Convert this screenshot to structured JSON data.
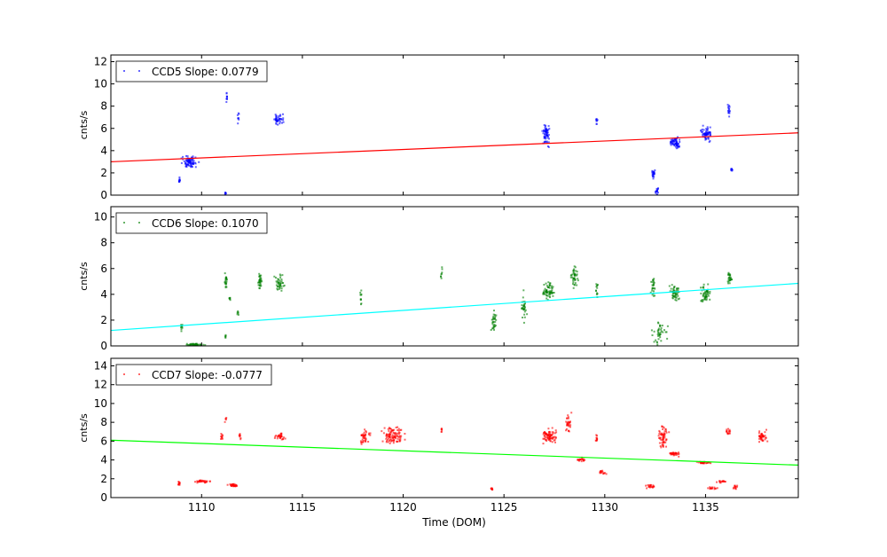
{
  "chart_data": {
    "type": "scatter",
    "xlabel": "Time (DOM)",
    "xlim": [
      1105.5,
      1139.6
    ],
    "xticks": [
      1110,
      1115,
      1120,
      1125,
      1130,
      1135
    ],
    "cluster_format": [
      "x",
      "y",
      "x_spread",
      "y_spread",
      "count"
    ],
    "panels": [
      {
        "name": "CCD5",
        "legend": "CCD5 Slope: 0.0779",
        "legend_position": "upper-left",
        "ylabel": "cnts/s",
        "ylim": [
          0,
          12.6
        ],
        "yticks": [
          0,
          2,
          4,
          6,
          8,
          10,
          12
        ],
        "point_color": "#0000ff",
        "fit_color": "#ff0000",
        "fit_line": [
          [
            1105.5,
            3.0
          ],
          [
            1139.6,
            5.6
          ]
        ],
        "clusters": [
          [
            1108.9,
            1.3,
            0.04,
            0.3,
            10
          ],
          [
            1109.4,
            3.0,
            0.3,
            0.4,
            80
          ],
          [
            1111.2,
            0.1,
            0.03,
            0.1,
            8
          ],
          [
            1111.25,
            8.6,
            0.03,
            0.5,
            10
          ],
          [
            1111.8,
            7.0,
            0.04,
            0.4,
            8
          ],
          [
            1113.8,
            6.9,
            0.2,
            0.35,
            40
          ],
          [
            1127.1,
            5.5,
            0.15,
            0.8,
            60
          ],
          [
            1129.6,
            6.6,
            0.03,
            0.5,
            8
          ],
          [
            1132.4,
            1.9,
            0.06,
            0.4,
            20
          ],
          [
            1132.6,
            0.4,
            0.06,
            0.4,
            15
          ],
          [
            1133.5,
            4.7,
            0.2,
            0.4,
            60
          ],
          [
            1135.05,
            5.5,
            0.2,
            0.5,
            60
          ],
          [
            1136.15,
            7.6,
            0.05,
            0.5,
            15
          ],
          [
            1136.3,
            2.2,
            0.04,
            0.2,
            10
          ]
        ]
      },
      {
        "name": "CCD6",
        "legend": "CCD6 Slope: 0.1070",
        "legend_position": "upper-left",
        "ylabel": "cnts/s",
        "ylim": [
          0,
          10.8
        ],
        "yticks": [
          0,
          2,
          4,
          6,
          8,
          10
        ],
        "point_color": "#007f00",
        "fit_color": "#00ffff",
        "fit_line": [
          [
            1105.5,
            1.2
          ],
          [
            1139.6,
            4.85
          ]
        ],
        "clusters": [
          [
            1109.0,
            1.4,
            0.04,
            0.3,
            10
          ],
          [
            1109.6,
            0.1,
            0.4,
            0.05,
            40
          ],
          [
            1111.2,
            5.0,
            0.05,
            0.5,
            20
          ],
          [
            1111.2,
            0.8,
            0.03,
            0.2,
            5
          ],
          [
            1111.4,
            3.6,
            0.03,
            0.2,
            6
          ],
          [
            1111.8,
            2.6,
            0.03,
            0.2,
            6
          ],
          [
            1112.9,
            5.0,
            0.08,
            0.5,
            30
          ],
          [
            1113.9,
            4.8,
            0.2,
            0.6,
            40
          ],
          [
            1117.9,
            3.8,
            0.03,
            0.6,
            10
          ],
          [
            1121.9,
            5.6,
            0.03,
            0.4,
            8
          ],
          [
            1124.5,
            1.8,
            0.1,
            0.8,
            30
          ],
          [
            1126.0,
            3.0,
            0.1,
            0.9,
            30
          ],
          [
            1127.2,
            4.3,
            0.2,
            0.5,
            60
          ],
          [
            1128.5,
            5.5,
            0.15,
            0.7,
            40
          ],
          [
            1129.6,
            4.5,
            0.05,
            0.8,
            12
          ],
          [
            1132.4,
            4.5,
            0.08,
            0.8,
            25
          ],
          [
            1132.7,
            1.0,
            0.3,
            0.8,
            40
          ],
          [
            1133.5,
            4.1,
            0.2,
            0.5,
            50
          ],
          [
            1135.0,
            4.0,
            0.2,
            0.6,
            50
          ],
          [
            1136.2,
            5.3,
            0.1,
            0.4,
            25
          ]
        ]
      },
      {
        "name": "CCD7",
        "legend": "CCD7 Slope: -0.0777",
        "legend_position": "upper-left",
        "ylabel": "cnts/s",
        "ylim": [
          0,
          14.8
        ],
        "yticks": [
          0,
          2,
          4,
          6,
          8,
          10,
          12,
          14
        ],
        "point_color": "#ff0000",
        "fit_color": "#00ff00",
        "fit_line": [
          [
            1105.5,
            6.1
          ],
          [
            1139.6,
            3.45
          ]
        ],
        "clusters": [
          [
            1108.9,
            1.5,
            0.05,
            0.2,
            10
          ],
          [
            1110.0,
            1.7,
            0.3,
            0.1,
            30
          ],
          [
            1111.0,
            6.5,
            0.05,
            0.3,
            10
          ],
          [
            1111.2,
            8.4,
            0.03,
            0.3,
            5
          ],
          [
            1111.6,
            1.3,
            0.25,
            0.1,
            30
          ],
          [
            1111.9,
            6.5,
            0.04,
            0.3,
            8
          ],
          [
            1113.9,
            6.5,
            0.2,
            0.3,
            30
          ],
          [
            1118.1,
            6.5,
            0.2,
            0.6,
            40
          ],
          [
            1119.5,
            6.7,
            0.4,
            0.8,
            100
          ],
          [
            1121.9,
            7.2,
            0.03,
            0.3,
            6
          ],
          [
            1124.4,
            0.9,
            0.04,
            0.1,
            10
          ],
          [
            1127.2,
            6.5,
            0.3,
            0.6,
            80
          ],
          [
            1128.2,
            8.0,
            0.1,
            0.9,
            30
          ],
          [
            1128.8,
            4.0,
            0.2,
            0.2,
            20
          ],
          [
            1129.6,
            6.2,
            0.05,
            0.4,
            10
          ],
          [
            1129.9,
            2.6,
            0.15,
            0.2,
            15
          ],
          [
            1132.3,
            1.2,
            0.2,
            0.15,
            20
          ],
          [
            1132.9,
            6.5,
            0.2,
            0.9,
            60
          ],
          [
            1133.5,
            4.6,
            0.2,
            0.2,
            30
          ],
          [
            1134.9,
            3.7,
            0.3,
            0.1,
            30
          ],
          [
            1135.4,
            1.0,
            0.2,
            0.1,
            15
          ],
          [
            1135.8,
            1.7,
            0.2,
            0.1,
            15
          ],
          [
            1136.1,
            7.0,
            0.1,
            0.3,
            15
          ],
          [
            1136.5,
            1.1,
            0.1,
            0.2,
            12
          ],
          [
            1137.8,
            6.5,
            0.2,
            0.5,
            40
          ]
        ]
      }
    ]
  }
}
